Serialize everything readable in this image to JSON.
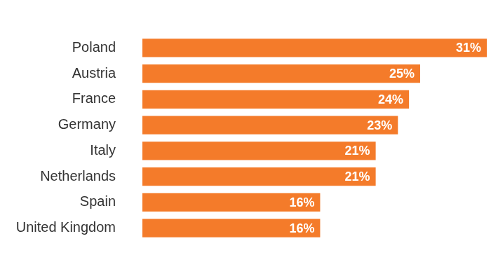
{
  "chart_data": {
    "type": "bar",
    "orientation": "horizontal",
    "categories": [
      "Poland",
      "Austria",
      "France",
      "Germany",
      "Italy",
      "Netherlands",
      "Spain",
      "United Kingdom"
    ],
    "values": [
      31,
      25,
      24,
      23,
      21,
      21,
      16,
      16
    ],
    "value_labels": [
      "31%",
      "25%",
      "24%",
      "23%",
      "21%",
      "21%",
      "16%",
      "16%"
    ],
    "color": "#f47b2a",
    "xlim": [
      0,
      31
    ],
    "grid": false,
    "tick_labels": "y",
    "data_labels": true
  }
}
